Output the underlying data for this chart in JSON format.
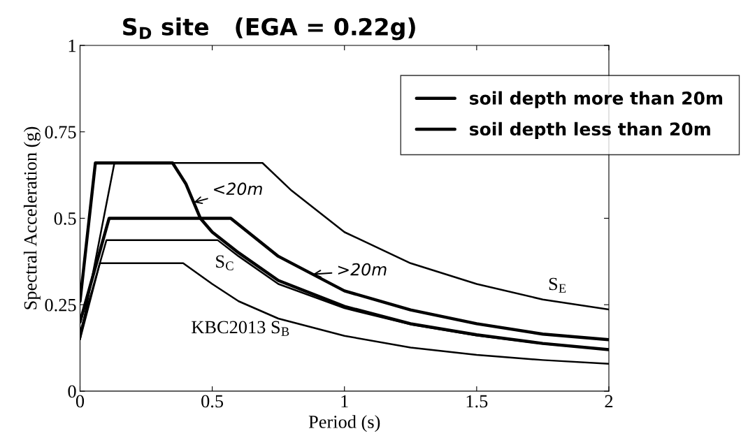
{
  "chart_data": {
    "type": "line",
    "title": "S$_{D}$ site   (EGA = 0.22g)",
    "xlabel": "Period (s)",
    "ylabel": "Spectral Acceleration (g)",
    "series": [
      {
        "color": "#000000",
        "x": [
          0,
          0.13,
          0.69,
          0.8,
          1,
          1.25,
          1.5,
          1.75,
          2
        ],
        "values": [
          0.15,
          0.66,
          0.66,
          0.58,
          0.46,
          0.37,
          0.31,
          0.265,
          0.236
        ]
      },
      {
        "name": "soil depth more than 20m",
        "color": "#000000",
        "x": [
          0,
          0.11,
          0.57,
          0.75,
          1,
          1.25,
          1.5,
          1.75,
          2
        ],
        "values": [
          0.2,
          0.5,
          0.5,
          0.39,
          0.29,
          0.235,
          0.195,
          0.165,
          0.149
        ]
      },
      {
        "name": "soil depth less than 20m",
        "color": "#000000",
        "x": [
          0,
          0.058,
          0.35,
          0.4,
          0.455,
          0.5,
          0.6,
          0.75,
          1,
          1.25,
          1.5,
          1.75,
          2
        ],
        "values": [
          0.26,
          0.66,
          0.66,
          0.6,
          0.5,
          0.46,
          0.4,
          0.32,
          0.245,
          0.195,
          0.163,
          0.138,
          0.12
        ]
      },
      {
        "color": "#000000",
        "x": [
          0,
          0.1,
          0.52,
          0.6,
          0.75,
          1,
          1.25,
          1.5,
          1.75,
          2
        ],
        "values": [
          0.17,
          0.437,
          0.437,
          0.39,
          0.31,
          0.24,
          0.193,
          0.161,
          0.137,
          0.12
        ]
      },
      {
        "color": "#000000",
        "x": [
          0,
          0.075,
          0.39,
          0.5,
          0.6,
          0.75,
          1,
          1.25,
          1.5,
          1.75,
          2
        ],
        "values": [
          0.15,
          0.37,
          0.37,
          0.31,
          0.26,
          0.21,
          0.16,
          0.126,
          0.105,
          0.09,
          0.079
        ]
      }
    ],
    "annotations": [
      "S$_{C}$",
      "S$_{E}$",
      "KBC2013 S$_{B}$",
      {
        "text": "<20m",
        "x": 0.43,
        "y": 0.546
      },
      {
        "text": ">20m",
        "x": 0.88,
        "y": 0.338
      }
    ],
    "xlim": [
      0,
      2
    ],
    "ylim": [
      0,
      1
    ],
    "xticks": [
      0,
      0.5,
      1,
      1.5,
      2
    ],
    "yticks": [
      0,
      0.25,
      0.5,
      0.75,
      1
    ],
    "grid": false,
    "legend": "top right",
    "marker": "none",
    "line_style": "solid"
  }
}
